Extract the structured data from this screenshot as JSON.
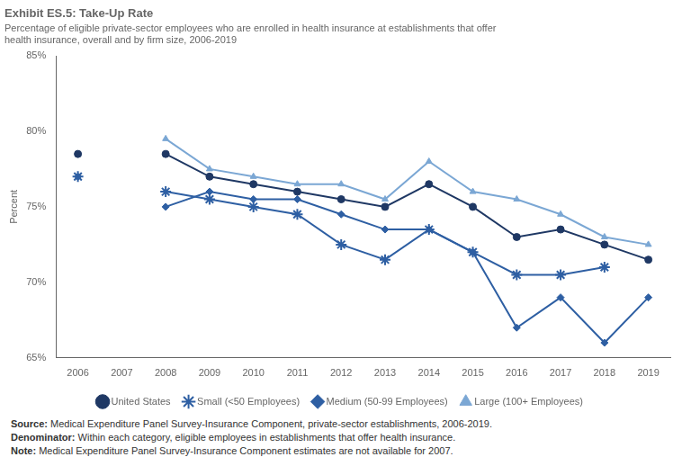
{
  "chart_data": {
    "type": "line",
    "title": "Exhibit ES.5: Take-Up Rate",
    "subtitle": [
      "Percentage of eligible private-sector employees who are enrolled in health insurance at establishments that offer",
      "health insurance, overall and by firm size, 2006-2019"
    ],
    "x": [
      2006,
      2007,
      2008,
      2009,
      2010,
      2011,
      2012,
      2013,
      2014,
      2015,
      2016,
      2017,
      2018,
      2019
    ],
    "series": [
      {
        "name": "United States",
        "color": "#1f3864",
        "marker": "circle",
        "values": [
          78.5,
          null,
          78.5,
          77.0,
          76.5,
          76.0,
          75.5,
          75.0,
          76.5,
          75.0,
          73.0,
          73.5,
          72.5,
          71.5
        ]
      },
      {
        "name": "Small (<50 Employees)",
        "color": "#2e5fa3",
        "marker": "star",
        "values": [
          77.0,
          null,
          76.0,
          75.5,
          75.0,
          74.5,
          72.5,
          71.5,
          73.5,
          72.0,
          70.5,
          70.5,
          71.0,
          null
        ]
      },
      {
        "name": "Medium (50-99 Employees)",
        "color": "#2e5fa3",
        "marker": "diamond",
        "values": [
          77.0,
          null,
          75.0,
          76.0,
          75.5,
          75.5,
          74.5,
          73.5,
          73.5,
          72.0,
          67.0,
          69.0,
          66.0,
          69.0
        ]
      },
      {
        "name": "Large (100+ Employees)",
        "color": "#7ba7d4",
        "marker": "triangle",
        "values": [
          78.5,
          null,
          79.5,
          77.5,
          77.0,
          76.5,
          76.5,
          75.5,
          78.0,
          76.0,
          75.5,
          74.5,
          73.0,
          72.5
        ]
      }
    ],
    "xlim": [
      2005.5,
      2019.5
    ],
    "xticks": [
      2006,
      2007,
      2008,
      2009,
      2010,
      2011,
      2012,
      2013,
      2014,
      2015,
      2016,
      2017,
      2018,
      2019
    ],
    "ylim": [
      65,
      85
    ],
    "yticks": [
      {
        "value": 65,
        "label": "65%"
      },
      {
        "value": 70,
        "label": "70%"
      },
      {
        "value": 75,
        "label": "75%"
      },
      {
        "value": 80,
        "label": "80%"
      },
      {
        "value": 85,
        "label": "85%"
      }
    ],
    "ylabel": "Percent",
    "grid": false,
    "legend": "bottom",
    "annotations": [
      "Source: Medical Expenditure Panel Survey-Insurance Component, private-sector establishments, 2006-2019.",
      "Denominator: Within each category, eligible employees in establishments that offer health insurance.",
      "Note: Medical Expenditure Panel Survey-Insurance Component estimates are not available for 2007."
    ]
  }
}
